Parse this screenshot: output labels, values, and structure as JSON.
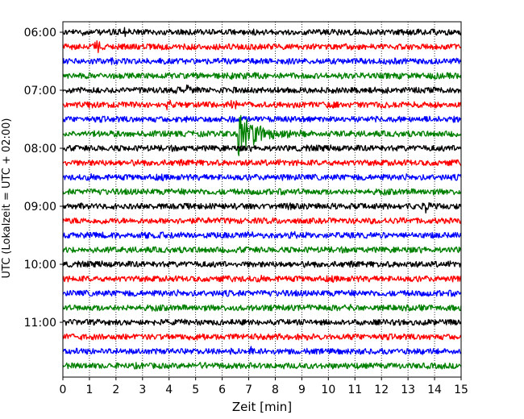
{
  "chart_data": {
    "type": "line",
    "subtype": "helicorder",
    "title": "",
    "xlabel": "Zeit  [min]",
    "ylabel": "UTC (Lokalzeit = UTC + 02:00)",
    "xlim": [
      0,
      15
    ],
    "x_ticks": [
      "0",
      "1",
      "2",
      "3",
      "4",
      "5",
      "6",
      "7",
      "8",
      "9",
      "10",
      "11",
      "12",
      "13",
      "14",
      "15"
    ],
    "y_ticks": [
      "06:00",
      "07:00",
      "08:00",
      "09:00",
      "10:00",
      "11:00"
    ],
    "y_tick_hours": [
      6,
      7,
      8,
      9,
      10,
      11
    ],
    "start_hour": 6.0,
    "trace_interval_min": 15,
    "trace_count": 24,
    "trace_colors": [
      "#000000",
      "#ff0000",
      "#0000ff",
      "#008000"
    ],
    "grid": "vertical dotted at each minute",
    "events": [
      {
        "trace_start": "07:45",
        "minute": 6.6,
        "amplitude": "large",
        "note": "strongest event, green trace"
      },
      {
        "trace_start": "07:15",
        "minute": 6.5,
        "amplitude": "medium"
      },
      {
        "trace_start": "07:15",
        "minute": 3.9,
        "amplitude": "medium"
      },
      {
        "trace_start": "07:00",
        "minute": 4.7,
        "amplitude": "small"
      },
      {
        "trace_start": "06:15",
        "minute": 1.3,
        "amplitude": "small"
      },
      {
        "trace_start": "06:00",
        "minute": 2.3,
        "amplitude": "small"
      },
      {
        "trace_start": "09:00",
        "minute": 13.7,
        "amplitude": "small"
      },
      {
        "trace_start": "09:30",
        "minute": 7.0,
        "amplitude": "small"
      },
      {
        "trace_start": "11:30",
        "minute": 7.2,
        "amplitude": "small"
      }
    ]
  }
}
